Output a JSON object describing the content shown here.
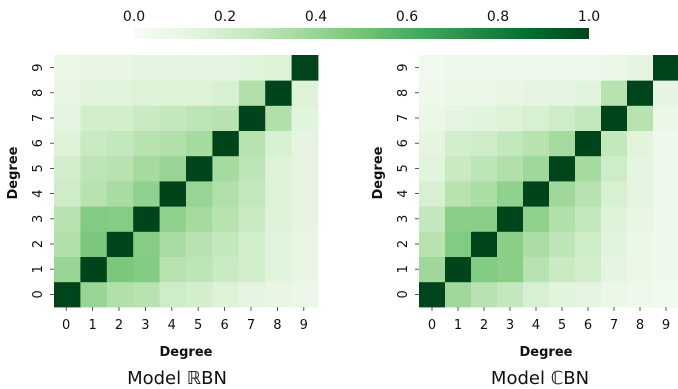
{
  "colorbar": {
    "ticks": [
      0.0,
      0.2,
      0.4,
      0.6,
      0.8,
      1.0
    ],
    "tick_labels": [
      "0.0",
      "0.2",
      "0.4",
      "0.6",
      "0.8",
      "1.0"
    ],
    "colormap": "Greens",
    "low_color": "#f7fcf5",
    "high_color": "#00441b"
  },
  "chart_data": [
    {
      "type": "heatmap",
      "title": "Model ℝBN",
      "xlabel": "Degree",
      "ylabel": "Degree",
      "x": [
        "0",
        "1",
        "2",
        "3",
        "4",
        "5",
        "6",
        "7",
        "8",
        "9"
      ],
      "y": [
        "0",
        "1",
        "2",
        "3",
        "4",
        "5",
        "6",
        "7",
        "8",
        "9"
      ],
      "vmin": 0,
      "vmax": 1,
      "values": [
        [
          1.0,
          0.4,
          0.32,
          0.3,
          0.22,
          0.2,
          0.16,
          0.12,
          0.1,
          0.08
        ],
        [
          0.4,
          1.0,
          0.48,
          0.46,
          0.3,
          0.28,
          0.24,
          0.2,
          0.14,
          0.1
        ],
        [
          0.32,
          0.48,
          1.0,
          0.45,
          0.35,
          0.3,
          0.26,
          0.2,
          0.14,
          0.1
        ],
        [
          0.3,
          0.46,
          0.45,
          1.0,
          0.42,
          0.36,
          0.3,
          0.24,
          0.16,
          0.12
        ],
        [
          0.22,
          0.3,
          0.35,
          0.42,
          1.0,
          0.4,
          0.32,
          0.26,
          0.16,
          0.12
        ],
        [
          0.2,
          0.28,
          0.3,
          0.36,
          0.4,
          1.0,
          0.36,
          0.28,
          0.16,
          0.12
        ],
        [
          0.16,
          0.24,
          0.26,
          0.3,
          0.32,
          0.36,
          1.0,
          0.3,
          0.18,
          0.12
        ],
        [
          0.12,
          0.2,
          0.2,
          0.24,
          0.26,
          0.28,
          0.3,
          1.0,
          0.32,
          0.14
        ],
        [
          0.1,
          0.14,
          0.14,
          0.16,
          0.16,
          0.16,
          0.18,
          0.32,
          1.0,
          0.16
        ],
        [
          0.08,
          0.1,
          0.1,
          0.12,
          0.12,
          0.12,
          0.12,
          0.14,
          0.16,
          1.0
        ]
      ]
    },
    {
      "type": "heatmap",
      "title": "Model ℂBN",
      "xlabel": "Degree",
      "ylabel": "Degree",
      "x": [
        "0",
        "1",
        "2",
        "3",
        "4",
        "5",
        "6",
        "7",
        "8",
        "9"
      ],
      "y": [
        "0",
        "1",
        "2",
        "3",
        "4",
        "5",
        "6",
        "7",
        "8",
        "9"
      ],
      "vmin": 0,
      "vmax": 1,
      "values": [
        [
          1.0,
          0.38,
          0.3,
          0.26,
          0.18,
          0.14,
          0.12,
          0.08,
          0.06,
          0.04
        ],
        [
          0.38,
          1.0,
          0.46,
          0.44,
          0.3,
          0.24,
          0.2,
          0.12,
          0.08,
          0.06
        ],
        [
          0.3,
          0.46,
          1.0,
          0.44,
          0.34,
          0.28,
          0.22,
          0.14,
          0.08,
          0.06
        ],
        [
          0.26,
          0.44,
          0.44,
          1.0,
          0.42,
          0.32,
          0.26,
          0.16,
          0.1,
          0.06
        ],
        [
          0.18,
          0.3,
          0.34,
          0.42,
          1.0,
          0.38,
          0.3,
          0.18,
          0.12,
          0.06
        ],
        [
          0.14,
          0.24,
          0.28,
          0.32,
          0.38,
          1.0,
          0.36,
          0.22,
          0.12,
          0.06
        ],
        [
          0.12,
          0.2,
          0.22,
          0.26,
          0.3,
          0.36,
          1.0,
          0.26,
          0.14,
          0.06
        ],
        [
          0.08,
          0.12,
          0.14,
          0.16,
          0.18,
          0.22,
          0.26,
          1.0,
          0.3,
          0.08
        ],
        [
          0.06,
          0.08,
          0.08,
          0.1,
          0.12,
          0.12,
          0.14,
          0.3,
          1.0,
          0.12
        ],
        [
          0.04,
          0.06,
          0.06,
          0.06,
          0.06,
          0.06,
          0.06,
          0.08,
          0.12,
          1.0
        ]
      ]
    }
  ]
}
